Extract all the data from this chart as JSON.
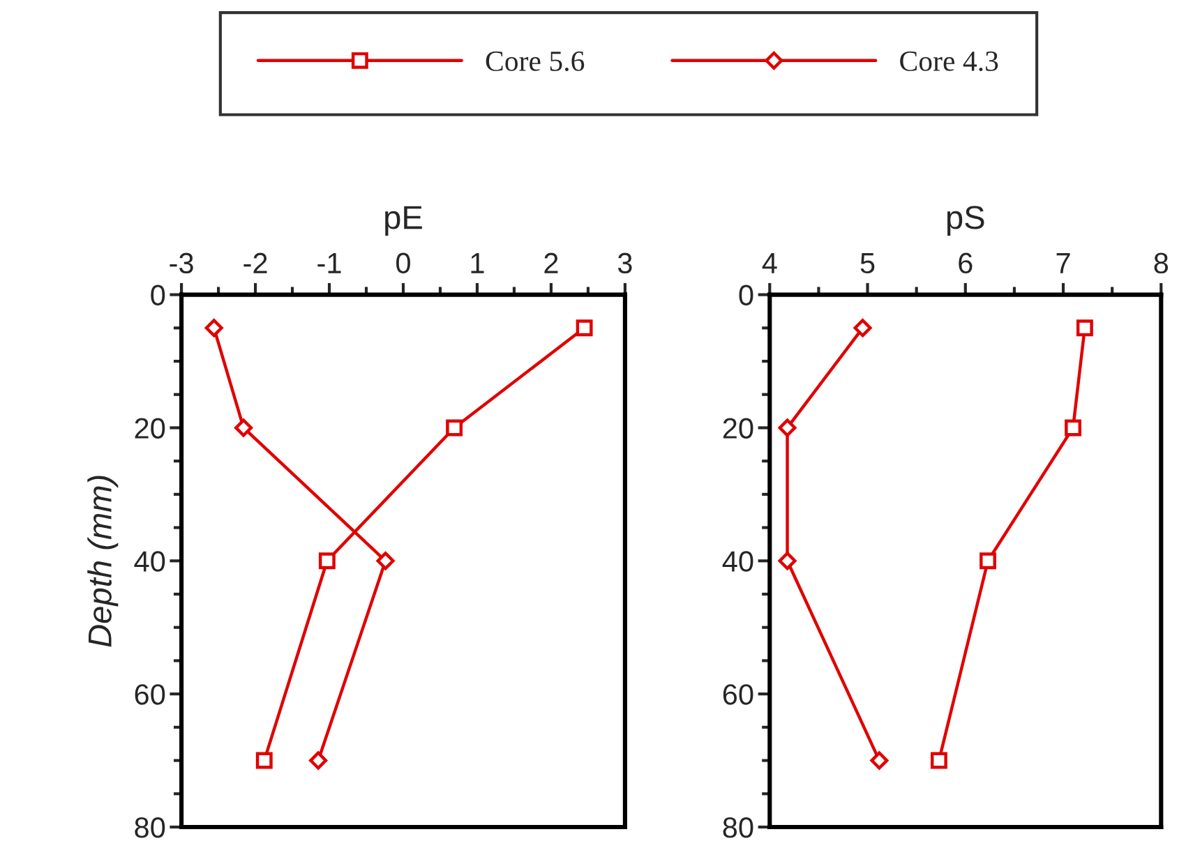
{
  "chart_data": [
    {
      "type": "line",
      "title": "pE",
      "ylabel": "Depth (mm)",
      "legend": "top",
      "xlim": [
        -3,
        3
      ],
      "xticks": [
        -3,
        {
          "value": -2.5,
          "label": null
        },
        -2,
        {
          "value": -1.5,
          "label": null
        },
        -1,
        {
          "value": -0.5,
          "label": null
        },
        0,
        {
          "value": 0.5,
          "label": null
        },
        1,
        {
          "value": 1.5,
          "label": null
        },
        2,
        {
          "value": 2.5,
          "label": null
        },
        3
      ],
      "ylim": [
        80,
        0
      ],
      "yticks": [
        0,
        {
          "value": 5,
          "label": null
        },
        {
          "value": 10,
          "label": null
        },
        {
          "value": 15,
          "label": null
        },
        20,
        {
          "value": 25,
          "label": null
        },
        {
          "value": 30,
          "label": null
        },
        {
          "value": 35,
          "label": null
        },
        40,
        {
          "value": 45,
          "label": null
        },
        {
          "value": 50,
          "label": null
        },
        {
          "value": 55,
          "label": null
        },
        60,
        {
          "value": 65,
          "label": null
        },
        {
          "value": 70,
          "label": null
        },
        {
          "value": 75,
          "label": null
        },
        80
      ],
      "grid": false,
      "series": [
        {
          "name": "Core 5.6",
          "color": "#e00000",
          "marker": "square",
          "x": [
            2.45,
            0.69,
            -1.03,
            -1.88
          ],
          "values": [
            5,
            20,
            40,
            70
          ]
        },
        {
          "name": "Core 4.3",
          "color": "#e00000",
          "marker": "diamond",
          "x": [
            -2.56,
            -2.16,
            -0.24,
            -1.15
          ],
          "values": [
            5,
            20,
            40,
            70
          ]
        }
      ]
    },
    {
      "type": "line",
      "title": "pS",
      "xlim": [
        4,
        8
      ],
      "xticks": [
        4,
        {
          "value": 4.5,
          "label": null
        },
        5,
        {
          "value": 5.5,
          "label": null
        },
        6,
        {
          "value": 6.5,
          "label": null
        },
        7,
        {
          "value": 7.5,
          "label": null
        },
        8
      ],
      "ylim": [
        80,
        0
      ],
      "yticks": [
        0,
        {
          "value": 5,
          "label": null
        },
        {
          "value": 10,
          "label": null
        },
        {
          "value": 15,
          "label": null
        },
        20,
        {
          "value": 25,
          "label": null
        },
        {
          "value": 30,
          "label": null
        },
        {
          "value": 35,
          "label": null
        },
        40,
        {
          "value": 45,
          "label": null
        },
        {
          "value": 50,
          "label": null
        },
        {
          "value": 55,
          "label": null
        },
        60,
        {
          "value": 65,
          "label": null
        },
        {
          "value": 70,
          "label": null
        },
        {
          "value": 75,
          "label": null
        },
        80
      ],
      "grid": false,
      "series": [
        {
          "color": "#e00000",
          "marker": "square",
          "x": [
            7.22,
            7.1,
            6.23,
            5.73
          ],
          "values": [
            5,
            20,
            40,
            70
          ]
        },
        {
          "color": "#e00000",
          "marker": "diamond",
          "x": [
            4.95,
            4.18,
            4.18,
            5.12
          ],
          "values": [
            5,
            20,
            40,
            70
          ]
        }
      ]
    }
  ]
}
